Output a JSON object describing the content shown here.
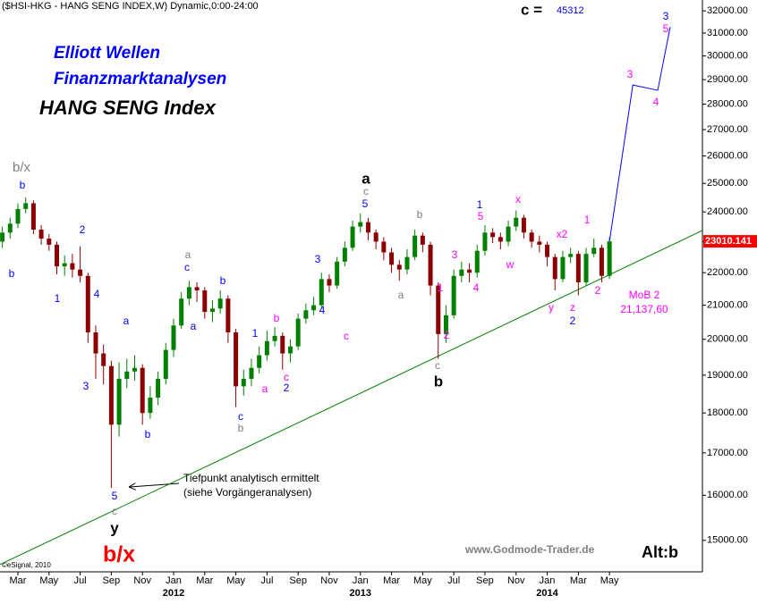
{
  "chart_data": {
    "type": "candlestick",
    "heading": "($HSI-HKG - HANG SENG INDEX,W) Dynamic,0:00-24:00",
    "title_lines": [
      "Elliott Wellen",
      "Finanzmarktanalysen"
    ],
    "subtitle": "HANG SENG Index",
    "target_label": "c =",
    "target_value": 45312,
    "x": [
      1,
      1.5,
      2,
      2.5,
      3,
      3.5,
      4,
      4.5,
      5,
      5.5,
      6,
      6.5,
      7,
      7.5,
      8,
      8.5,
      9,
      9.5,
      10,
      10.5,
      11,
      11.5,
      12,
      12.5,
      13,
      13.5,
      14,
      14.5,
      15,
      15.5,
      16,
      16.5,
      17,
      17.5,
      18,
      18.5,
      19,
      19.5,
      20,
      20.5,
      21,
      21.5,
      22,
      22.5,
      23,
      23.5,
      24,
      24.5,
      25,
      25.5,
      26,
      26.5,
      27,
      27.5,
      28,
      28.5,
      29,
      29.5,
      30,
      30.5,
      31,
      31.5,
      32,
      32.5,
      33,
      33.5,
      34,
      34.5,
      35,
      35.5,
      36,
      36.5,
      37,
      37.5,
      38,
      38.5,
      39,
      39.5,
      40
    ],
    "open": [
      23000,
      23300,
      23600,
      24100,
      24300,
      23400,
      23100,
      22900,
      22200,
      22300,
      22100,
      21900,
      20200,
      19600,
      19250,
      17700,
      18900,
      19100,
      19200,
      18000,
      18400,
      18900,
      19700,
      20400,
      21200,
      21550,
      21450,
      20800,
      20900,
      21200,
      20200,
      18700,
      18900,
      19200,
      19550,
      19950,
      20100,
      19600,
      19800,
      20600,
      20850,
      21000,
      21800,
      21600,
      22350,
      22800,
      23500,
      23650,
      23300,
      23000,
      22650,
      22250,
      22100,
      22500,
      23200,
      22900,
      21600,
      20150,
      20700,
      21900,
      22100,
      22000,
      22700,
      23300,
      23150,
      23000,
      23500,
      23800,
      23300,
      23000,
      22900,
      22500,
      21800,
      22500,
      22600,
      21700,
      22600,
      22800,
      21900
    ],
    "high": [
      23500,
      23800,
      24300,
      24500,
      24400,
      23550,
      23250,
      23000,
      22550,
      22600,
      22850,
      22000,
      20400,
      19850,
      19400,
      19350,
      19450,
      19550,
      19300,
      18700,
      19100,
      19900,
      20600,
      21400,
      21750,
      21700,
      21550,
      21150,
      21450,
      21300,
      20300,
      19150,
      19450,
      19800,
      20250,
      20350,
      20200,
      20000,
      20750,
      21050,
      21250,
      22000,
      21950,
      22500,
      23000,
      23700,
      23950,
      23800,
      23400,
      23150,
      22800,
      22400,
      22750,
      23400,
      23300,
      23000,
      21700,
      21000,
      22100,
      22350,
      22300,
      22900,
      23550,
      23450,
      23300,
      23700,
      24050,
      23900,
      23400,
      23200,
      23000,
      22600,
      22700,
      22800,
      22700,
      22800,
      23100,
      22900,
      23150
    ],
    "low": [
      22800,
      23100,
      23450,
      23950,
      23250,
      22900,
      22700,
      21950,
      21900,
      21850,
      21700,
      19900,
      18900,
      18750,
      16170,
      17400,
      18650,
      18850,
      17700,
      17850,
      18200,
      18750,
      19500,
      20300,
      21000,
      21100,
      20600,
      20500,
      20750,
      19900,
      18150,
      18450,
      18700,
      19050,
      19400,
      19800,
      19150,
      19350,
      19700,
      20450,
      20700,
      20900,
      21400,
      21500,
      22200,
      22700,
      23300,
      23050,
      22750,
      22400,
      22000,
      21750,
      21950,
      22400,
      22650,
      21300,
      19450,
      19900,
      20600,
      21700,
      21700,
      21850,
      22550,
      22950,
      22750,
      22850,
      23350,
      23100,
      22800,
      22650,
      22200,
      21450,
      21700,
      22300,
      21300,
      21600,
      22500,
      21700,
      21800
    ],
    "close": [
      23300,
      23600,
      24100,
      24300,
      23400,
      23100,
      22900,
      22200,
      22300,
      22100,
      21900,
      20200,
      19600,
      19250,
      17700,
      18900,
      19100,
      19200,
      18000,
      18400,
      18900,
      19700,
      20400,
      21200,
      21550,
      21450,
      20800,
      20900,
      21200,
      20200,
      18700,
      18900,
      19200,
      19550,
      19950,
      20100,
      19600,
      19800,
      20600,
      20850,
      21000,
      21800,
      21600,
      22350,
      22800,
      23500,
      23650,
      23300,
      23000,
      22650,
      22250,
      22100,
      22500,
      23200,
      22900,
      21600,
      20150,
      20700,
      21900,
      22100,
      22000,
      22700,
      23300,
      23150,
      23000,
      23500,
      23800,
      23300,
      23000,
      22900,
      22500,
      21800,
      22500,
      22600,
      21700,
      22600,
      22800,
      21900,
      23010.141
    ],
    "up_color": "#008000",
    "down_color": "#8b0000",
    "projection": {
      "x": [
        40,
        41.5,
        43.1,
        43.9
      ],
      "values": [
        23010.141,
        28780,
        28560,
        31270
      ],
      "color": "#0000ff"
    },
    "trendline": {
      "x": [
        0.85,
        45.97
      ],
      "values": [
        14490,
        23370
      ],
      "color": "#008000"
    },
    "xlim": [
      0.85,
      45.97
    ],
    "ylim": [
      14340,
      32500
    ],
    "log_scale": true,
    "yticks": [
      {
        "value": 15000,
        "label": "15000.00"
      },
      {
        "value": 16000,
        "label": "16000.00"
      },
      {
        "value": 17000,
        "label": "17000.00"
      },
      {
        "value": 18000,
        "label": "18000.00"
      },
      {
        "value": 19000,
        "label": "19000.00"
      },
      {
        "value": 20000,
        "label": "20000.00"
      },
      {
        "value": 21000,
        "label": "21000.00"
      },
      {
        "value": 22000,
        "label": "22000.00"
      },
      {
        "value": 23000,
        "label": "23000.00"
      },
      {
        "value": 24000,
        "label": "24000.00"
      },
      {
        "value": 25000,
        "label": "25000.00"
      },
      {
        "value": 26000,
        "label": "26000.00"
      },
      {
        "value": 27000,
        "label": "27000.00"
      },
      {
        "value": 28000,
        "label": "28000.00"
      },
      {
        "value": 29000,
        "label": "29000.00"
      },
      {
        "value": 30000,
        "label": "30000.00"
      },
      {
        "value": 31000,
        "label": "31000.00"
      },
      {
        "value": 32000,
        "label": "32000.00"
      }
    ],
    "xticks": [
      {
        "value": 2,
        "label": "Mar"
      },
      {
        "value": 4,
        "label": "May"
      },
      {
        "value": 6,
        "label": "Jul"
      },
      {
        "value": 8,
        "label": "Sep"
      },
      {
        "value": 10,
        "label": "Nov"
      },
      {
        "value": 12,
        "label": "Jan"
      },
      {
        "value": 14,
        "label": "Mar"
      },
      {
        "value": 16,
        "label": "May"
      },
      {
        "value": 18,
        "label": "Jul"
      },
      {
        "value": 20,
        "label": "Sep"
      },
      {
        "value": 22,
        "label": "Nov"
      },
      {
        "value": 24,
        "label": "Jan"
      },
      {
        "value": 26,
        "label": "Mar"
      },
      {
        "value": 28,
        "label": "May"
      },
      {
        "value": 30,
        "label": "Jul"
      },
      {
        "value": 32,
        "label": "Sep"
      },
      {
        "value": 34,
        "label": "Nov"
      },
      {
        "value": 36,
        "label": "Jan"
      },
      {
        "value": 38,
        "label": "Mar"
      },
      {
        "value": 40,
        "label": "May"
      }
    ],
    "year_ticks": [
      {
        "value": 12,
        "label": "2012"
      },
      {
        "value": 24,
        "label": "2013"
      },
      {
        "value": 36,
        "label": "2014"
      }
    ],
    "annotations": [
      "b/x",
      "b",
      "b",
      "1",
      "2",
      "4",
      "3",
      "5",
      "c",
      "y",
      "b/x",
      "a",
      "b",
      "a",
      "c",
      "a",
      "b",
      "c",
      "b",
      "1",
      "b",
      "a",
      "c",
      "2",
      "3",
      "4",
      "c",
      "a",
      "c",
      "5",
      "b",
      "a",
      "1",
      "2",
      "c",
      "b",
      "3",
      "4",
      "1",
      "5",
      "w",
      "x",
      "x2",
      "1",
      "y",
      "z",
      "2",
      "2",
      "MoB 2",
      "21,137,60",
      "3",
      "4",
      "3",
      "5"
    ],
    "note": [
      "Tiefpunkt analytisch ermittelt",
      "(siehe Vorgängeranalysen)"
    ],
    "source": "www.Godmode-Trader.de",
    "alt": "Alt:b",
    "copyright": "©eSignal, 2010"
  }
}
